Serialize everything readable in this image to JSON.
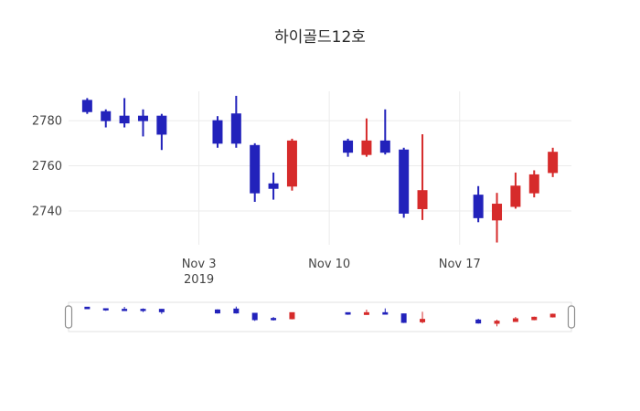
{
  "title": "하이골드12호",
  "chart_data": {
    "type": "candlestick",
    "title": "하이골드12호",
    "x": [
      "2019-10-28",
      "2019-10-29",
      "2019-10-30",
      "2019-10-31",
      "2019-11-01",
      "2019-11-04",
      "2019-11-05",
      "2019-11-06",
      "2019-11-07",
      "2019-11-08",
      "2019-11-11",
      "2019-11-12",
      "2019-11-13",
      "2019-11-14",
      "2019-11-15",
      "2019-11-18",
      "2019-11-19",
      "2019-11-20",
      "2019-11-21",
      "2019-11-22"
    ],
    "ohlc": [
      [
        2789,
        2790,
        2783,
        2784
      ],
      [
        2784,
        2785,
        2777,
        2780
      ],
      [
        2782,
        2790,
        2777,
        2779
      ],
      [
        2782,
        2785,
        2773,
        2780
      ],
      [
        2782,
        2783,
        2767,
        2774
      ],
      [
        2780,
        2782,
        2768,
        2770
      ],
      [
        2783,
        2791,
        2768,
        2770
      ],
      [
        2769,
        2770,
        2744,
        2748
      ],
      [
        2752,
        2757,
        2745,
        2750
      ],
      [
        2751,
        2772,
        2749,
        2771
      ],
      [
        2771,
        2772,
        2764,
        2766
      ],
      [
        2765,
        2781,
        2764,
        2771
      ],
      [
        2771,
        2785,
        2765,
        2766
      ],
      [
        2767,
        2768,
        2737,
        2739
      ],
      [
        2741,
        2774,
        2736,
        2749
      ],
      [
        2747,
        2751,
        2735,
        2737
      ],
      [
        2736,
        2748,
        2726,
        2743
      ],
      [
        2742,
        2757,
        2741,
        2751
      ],
      [
        2748,
        2758,
        2746,
        2756
      ],
      [
        2757,
        2768,
        2755,
        2766
      ]
    ],
    "y_ticks": [
      2780,
      2760,
      2740
    ],
    "x_ticks": [
      {
        "label": "Nov 3",
        "sublabel": "2019",
        "date": "2019-11-03"
      },
      {
        "label": "Nov 10",
        "date": "2019-11-10"
      },
      {
        "label": "Nov 17",
        "date": "2019-11-17"
      }
    ],
    "colors": {
      "increasing": "#d62b2b",
      "decreasing": "#2222bb"
    },
    "legend": "off",
    "grid": "on",
    "rangeslider": true
  }
}
